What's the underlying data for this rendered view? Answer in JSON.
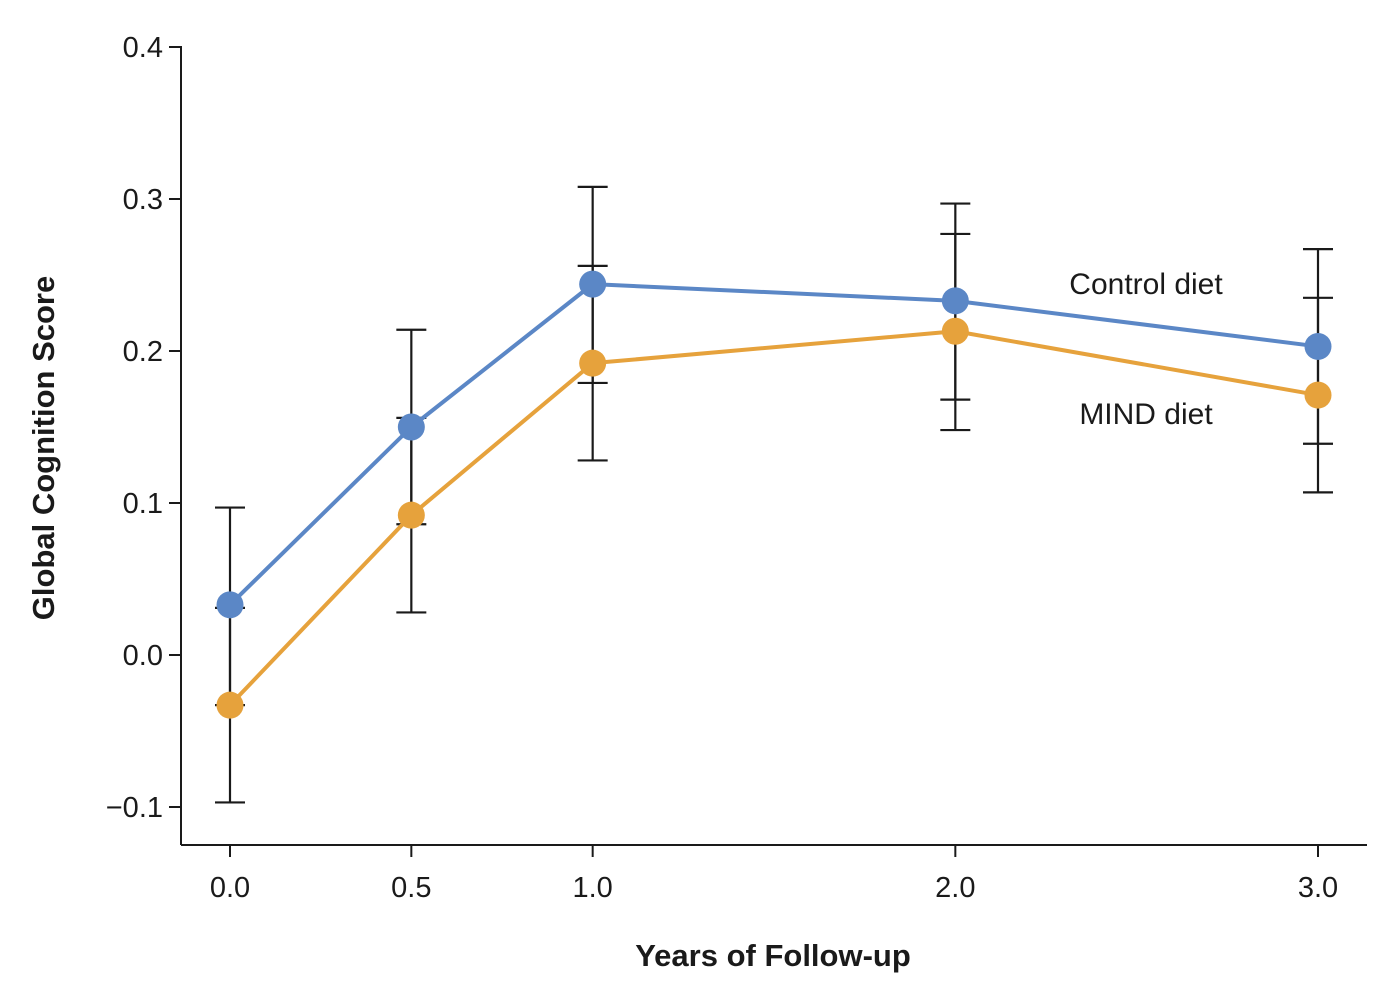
{
  "chart_data": {
    "type": "line",
    "title": "",
    "xlabel": "Years of Follow-up",
    "ylabel": "Global Cognition Score",
    "x": [
      0.0,
      0.5,
      1.0,
      2.0,
      3.0
    ],
    "x_tick_labels": [
      "0.0",
      "0.5",
      "1.0",
      "2.0",
      "3.0"
    ],
    "y_ticks": [
      -0.1,
      0.0,
      0.1,
      0.2,
      0.3,
      0.4
    ],
    "y_tick_labels": [
      "−0.1",
      "0.0",
      "0.1",
      "0.2",
      "0.3",
      "0.4"
    ],
    "ylim": [
      -0.125,
      0.4
    ],
    "xlim": [
      -0.14,
      3.14
    ],
    "grid": false,
    "series": [
      {
        "name": "Control diet",
        "color": "#5b87c6",
        "values": [
          0.033,
          0.15,
          0.244,
          0.233,
          0.203
        ],
        "error_low": [
          -0.033,
          0.086,
          0.179,
          0.168,
          0.139
        ],
        "error_high": [
          0.097,
          0.214,
          0.308,
          0.297,
          0.267
        ]
      },
      {
        "name": "MIND diet",
        "color": "#e6a23c",
        "values": [
          -0.033,
          0.092,
          0.192,
          0.213,
          0.171
        ],
        "error_low": [
          -0.097,
          0.028,
          0.128,
          0.148,
          0.107
        ],
        "error_high": [
          0.031,
          0.156,
          0.256,
          0.277,
          0.235
        ]
      }
    ],
    "axis_color": "#1a1a1a",
    "errorbar_color": "#1a1a1a"
  }
}
